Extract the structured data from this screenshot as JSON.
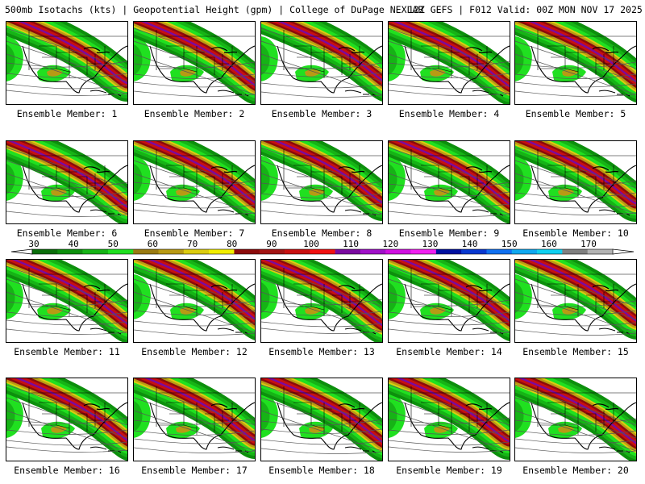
{
  "header": {
    "left": "500mb Isotachs (kts) | Geopotential Height (gpm) | College of DuPage NEXLAB",
    "right": "12Z GEFS | F012 Valid: 00Z MON NOV 17 2025"
  },
  "colorbar": {
    "labels": [
      "30",
      "40",
      "50",
      "60",
      "70",
      "80",
      "90",
      "100",
      "110",
      "120",
      "130",
      "140",
      "150",
      "160",
      "170"
    ],
    "colors": [
      "#0a6e0a",
      "#0d8f0d",
      "#16b316",
      "#20e020",
      "#9a7a12",
      "#b89a14",
      "#dccc10",
      "#f2ee00",
      "#8b0a0a",
      "#a31414",
      "#c81010",
      "#f01010",
      "#7a0aa0",
      "#a010c8",
      "#d010e0",
      "#f020f0",
      "#0010a0",
      "#0838d0",
      "#1070f0",
      "#10a8f0",
      "#10d0f0",
      "#808080",
      "#b4b4b4"
    ]
  },
  "members": [
    {
      "label": "Ensemble Member: 1"
    },
    {
      "label": "Ensemble Member: 2"
    },
    {
      "label": "Ensemble Member: 3"
    },
    {
      "label": "Ensemble Member: 4"
    },
    {
      "label": "Ensemble Member: 5"
    },
    {
      "label": "Ensemble Member: 6"
    },
    {
      "label": "Ensemble Member: 7"
    },
    {
      "label": "Ensemble Member: 8"
    },
    {
      "label": "Ensemble Member: 9"
    },
    {
      "label": "Ensemble Member: 10"
    },
    {
      "label": "Ensemble Member: 11"
    },
    {
      "label": "Ensemble Member: 12"
    },
    {
      "label": "Ensemble Member: 13"
    },
    {
      "label": "Ensemble Member: 14"
    },
    {
      "label": "Ensemble Member: 15"
    },
    {
      "label": "Ensemble Member: 16"
    },
    {
      "label": "Ensemble Member: 17"
    },
    {
      "label": "Ensemble Member: 18"
    },
    {
      "label": "Ensemble Member: 19"
    },
    {
      "label": "Ensemble Member: 20"
    }
  ]
}
